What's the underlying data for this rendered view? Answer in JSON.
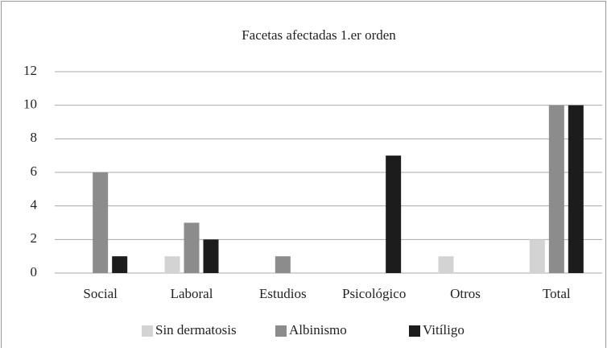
{
  "chart_data": {
    "type": "bar",
    "title": "Facetas afectadas 1.er orden",
    "categories": [
      "Social",
      "Laboral",
      "Estudios",
      "Psicológico",
      "Otros",
      "Total"
    ],
    "series": [
      {
        "name": "Sin dermatosis",
        "color": "#d3d3d3",
        "values": [
          0,
          1,
          0,
          0,
          1,
          2
        ]
      },
      {
        "name": "Albinismo",
        "color": "#8c8c8c",
        "values": [
          6,
          3,
          1,
          0,
          0,
          10
        ]
      },
      {
        "name": "Vitíligo",
        "color": "#1c1c1c",
        "values": [
          1,
          2,
          0,
          7,
          0,
          10
        ]
      }
    ],
    "ylim": [
      0,
      12
    ],
    "yticks": [
      0,
      2,
      4,
      6,
      8,
      10,
      12
    ],
    "grid": true,
    "legend": "bottom"
  }
}
